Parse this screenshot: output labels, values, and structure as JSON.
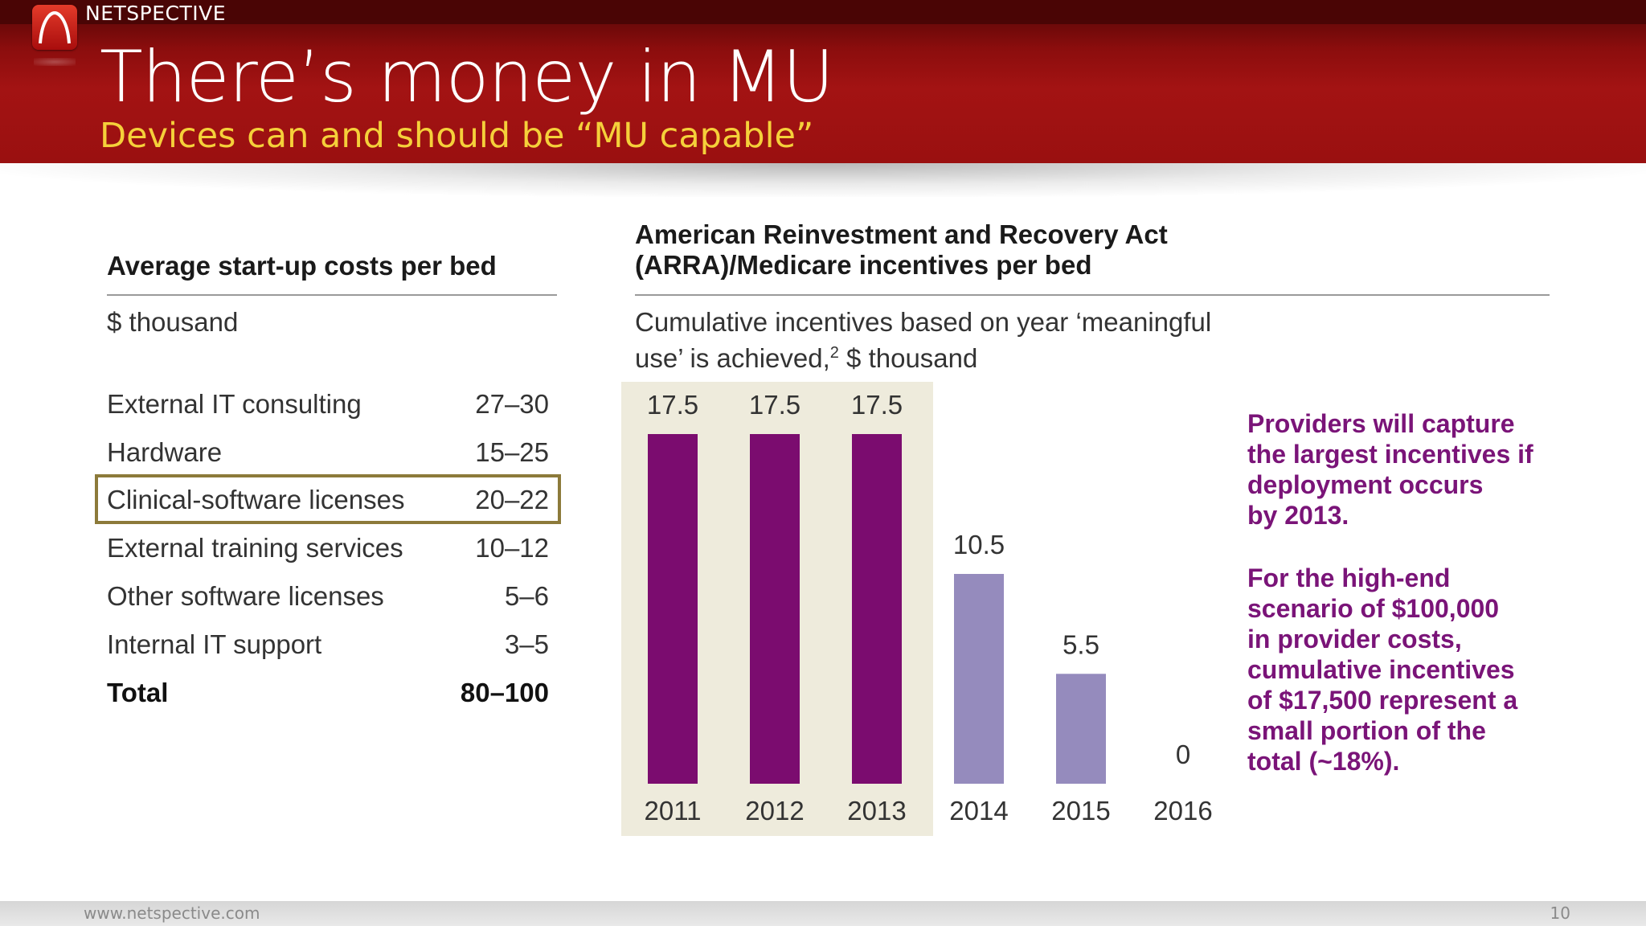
{
  "header": {
    "brand": "NETSPECTIVE",
    "title": "There’s money in MU",
    "subtitle": "Devices can and should be “MU capable”"
  },
  "costs": {
    "heading": "Average start-up costs per bed",
    "unit": "$ thousand",
    "rows": [
      {
        "label": "External IT consulting",
        "value": "27–30"
      },
      {
        "label": "Hardware",
        "value": "15–25"
      },
      {
        "label": "Clinical-software licenses",
        "value": "20–22"
      },
      {
        "label": "External training services",
        "value": "10–12"
      },
      {
        "label": "Other software licenses",
        "value": "5–6"
      },
      {
        "label": "Internal IT support",
        "value": "3–5"
      }
    ],
    "total": {
      "label": "Total",
      "value": "80–100"
    }
  },
  "incentives": {
    "heading_line1": "American Reinvestment and Recovery Act",
    "heading_line2": "(ARRA)/Medicare incentives per bed",
    "desc_line1": "Cumulative incentives based on year ‘meaningful",
    "desc_line2": "use’ is achieved,",
    "desc_sup": "2",
    "desc_line2_end": " $ thousand"
  },
  "chart_data": {
    "type": "bar",
    "categories": [
      "2011",
      "2012",
      "2013",
      "2014",
      "2015",
      "2016"
    ],
    "values": [
      17.5,
      17.5,
      17.5,
      10.5,
      5.5,
      0
    ],
    "data_labels": [
      "17.5",
      "17.5",
      "17.5",
      "10.5",
      "5.5",
      "0"
    ],
    "colors": [
      "#7b0c6f",
      "#7b0c6f",
      "#7b0c6f",
      "#958bbd",
      "#958bbd",
      "#958bbd"
    ],
    "highlight_background": "#eeebdc",
    "title": "",
    "xlabel": "",
    "ylabel": "",
    "grid": false
  },
  "callout": {
    "para1": [
      "Providers will capture",
      "the largest incentives if",
      "deployment occurs",
      "by 2013."
    ],
    "para2": [
      "For the high-end",
      "scenario of $100,000",
      "in provider costs,",
      "cumulative incentives",
      "of $17,500 represent a",
      "small portion of the",
      "total (~18%)."
    ]
  },
  "footer": {
    "url": "www.netspective.com",
    "page": "10"
  },
  "colors": {
    "header_red": "#9a1010",
    "subtitle_yellow": "#f5d03a",
    "callout_purple": "#7a1478",
    "highlight_border": "#8c7a3a"
  }
}
